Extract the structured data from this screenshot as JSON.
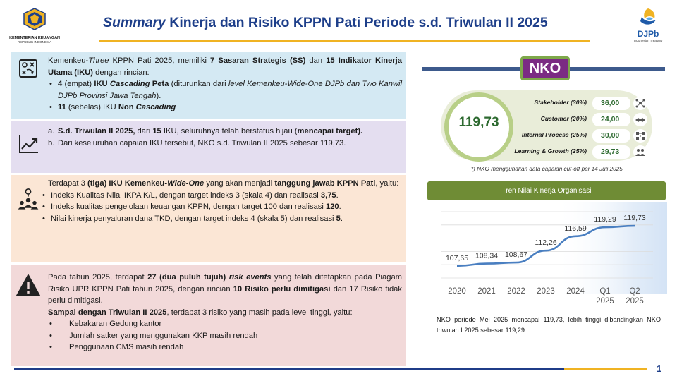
{
  "header": {
    "title_italic": "Summary",
    "title_rest": " Kinerja dan Risiko KPPN Pati Periode s.d. Triwulan II 2025",
    "logo_left_line1": "KEMENTERIAN KEUANGAN",
    "logo_left_line2": "REPUBLIK INDONESIA",
    "logo_right_name": "DJPb",
    "logo_right_sub": "Indonesian Treasury"
  },
  "box1": {
    "p1": "Kemenkeu-",
    "p1_i": "Three",
    "p2": " KPPN Pati 2025, memiliki ",
    "p2_b": "7 Sasaran Strategis (SS)",
    "p3": " dan ",
    "p3_b": "15 Indikator Kinerja Utama (IKU)",
    "p4": " dengan rincian:",
    "li1_b": "4",
    "li1_a": " (empat) ",
    "li1_b2": "IKU ",
    "li1_bi": "Cascading",
    "li1_b3": " Peta",
    "li1_c": " (diturunkan dari ",
    "li1_i": "level Kemenkeu-Wide-One DJPb dan Two Kanwil DJPb Provinsi Jawa Tengah",
    "li1_d": ").",
    "li2_b": "11",
    "li2_a": " (sebelas) IKU ",
    "li2_b2": "Non",
    "li2_bi": " Cascading"
  },
  "box2": {
    "a_label": "a.",
    "a_b1": "S.d. Triwulan II 2025,",
    "a_t1": " dari ",
    "a_b2": "15",
    "a_t2": " IKU, seluruhnya telah berstatus hijau (",
    "a_b3": "mencapai target).",
    "b_label": "b.",
    "b_t": "Dari keseluruhan capaian IKU tersebut, NKO s.d. Triwulan II 2025 sebesar 119,73."
  },
  "box3": {
    "t1": "Terdapat 3 ",
    "t1_b": "(tiga) IKU Kemenkeu-",
    "t1_bi": "Wide-One",
    "t2": " yang akan menjadi ",
    "t2_b": "tanggung jawab KPPN Pati",
    "t3": ", yaitu:",
    "li1": "Indeks Kualitas Nilai IKPA K/L, dengan target indeks 3 (skala 4) dan realisasi ",
    "li1_b": "3,75",
    "li1_e": ".",
    "li2": "Indeks kualitas pengelolaan keuangan KPPN, dengan target 100 dan realisasi ",
    "li2_b": "120",
    "li2_e": ".",
    "li3": "Nilai kinerja penyaluran dana TKD, dengan target indeks 4 (skala 5) dan realisasi ",
    "li3_b": "5",
    "li3_e": "."
  },
  "box4": {
    "t1": "Pada tahun 2025, terdapat ",
    "t1_b": "27 (dua puluh tujuh) ",
    "t1_bi": "risk events",
    "t2": " yang telah ditetapkan pada Piagam Risiko UPR KPPN Pati tahun 2025, dengan rincian ",
    "t2_b": "10 Risiko perlu dimitigasi",
    "t3": " dan 17 Risiko tidak perlu dimitigasi.",
    "s_b": "Sampai dengan Triwulan II 2025",
    "s_t": ", terdapat 3 risiko yang masih pada level tinggi, yaitu:",
    "li1": "Kebakaran Gedung kantor",
    "li2": "Jumlah satker yang menggunakan KKP masih rendah",
    "li3": "Penggunaan CMS masih rendah"
  },
  "nko": {
    "badge": "NKO",
    "value": "119,73",
    "rows": [
      {
        "label": "Stakeholder (30%)",
        "value": "36,00"
      },
      {
        "label": "Customer (20%)",
        "value": "24,00"
      },
      {
        "label": "Internal Process (25%)",
        "value": "30,00"
      },
      {
        "label": "Learning & Growth (25%)",
        "value": "29,73"
      }
    ],
    "note": "*) NKO menggunakan data capaian cut-off per 14 Juli 2025"
  },
  "trend": {
    "title": "Tren Nilai Kinerja Organisasi"
  },
  "chart_data": {
    "type": "line",
    "categories": [
      "2020",
      "2021",
      "2022",
      "2023",
      "2024",
      "Q1 2025",
      "Q2 2025"
    ],
    "values": [
      107.65,
      108.34,
      108.67,
      112.26,
      116.59,
      119.29,
      119.73
    ],
    "labels": [
      "107,65",
      "108,34",
      "108,67",
      "112,26",
      "116,59",
      "119,29",
      "119,73"
    ],
    "title": "Tren Nilai Kinerja Organisasi",
    "xlabel": "",
    "ylabel": "",
    "ylim": [
      104,
      124
    ],
    "grid": true,
    "color": "#4a7fc1"
  },
  "description": "NKO periode Mei 2025 mencapai 119,73, lebih tinggi dibandingkan NKO triwulan I 2025 sebesar 119,29.",
  "page_number": "1"
}
